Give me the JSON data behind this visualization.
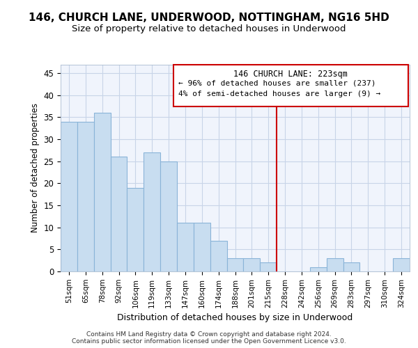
{
  "title": "146, CHURCH LANE, UNDERWOOD, NOTTINGHAM, NG16 5HD",
  "subtitle": "Size of property relative to detached houses in Underwood",
  "xlabel": "Distribution of detached houses by size in Underwood",
  "ylabel": "Number of detached properties",
  "categories": [
    "51sqm",
    "65sqm",
    "78sqm",
    "92sqm",
    "106sqm",
    "119sqm",
    "133sqm",
    "147sqm",
    "160sqm",
    "174sqm",
    "188sqm",
    "201sqm",
    "215sqm",
    "228sqm",
    "242sqm",
    "256sqm",
    "269sqm",
    "283sqm",
    "297sqm",
    "310sqm",
    "324sqm"
  ],
  "values": [
    34,
    34,
    36,
    26,
    19,
    27,
    25,
    11,
    11,
    7,
    3,
    3,
    2,
    0,
    0,
    1,
    3,
    2,
    0,
    0,
    3
  ],
  "bar_color": "#c8ddf0",
  "bar_edge_color": "#8ab4d8",
  "vline_color": "#cc0000",
  "annotation_title": "146 CHURCH LANE: 223sqm",
  "annotation_line1": "← 96% of detached houses are smaller (237)",
  "annotation_line2": "4% of semi-detached houses are larger (9) →",
  "annotation_box_edge": "#cc0000",
  "ylim": [
    0,
    47
  ],
  "yticks": [
    0,
    5,
    10,
    15,
    20,
    25,
    30,
    35,
    40,
    45
  ],
  "bg_color": "#ffffff",
  "plot_bg_color": "#f0f4fc",
  "grid_color": "#c8d4e8",
  "footer1": "Contains HM Land Registry data © Crown copyright and database right 2024.",
  "footer2": "Contains public sector information licensed under the Open Government Licence v3.0.",
  "title_fontsize": 11,
  "subtitle_fontsize": 9.5
}
